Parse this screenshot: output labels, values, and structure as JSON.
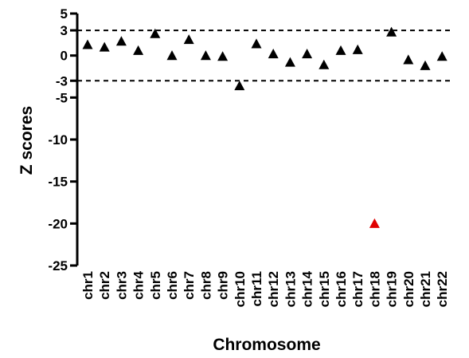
{
  "chart_data": {
    "type": "scatter",
    "xlabel": "Chromosome",
    "ylabel": "Z scores",
    "categories": [
      "chr1",
      "chr2",
      "chr3",
      "chr4",
      "chr5",
      "chr6",
      "chr7",
      "chr8",
      "chr9",
      "chr10",
      "chr11",
      "chr12",
      "chr13",
      "chr14",
      "chr15",
      "chr16",
      "chr17",
      "chr18",
      "chr19",
      "chr20",
      "chr21",
      "chr22"
    ],
    "values": [
      1.3,
      1.0,
      1.7,
      0.6,
      2.6,
      0.0,
      1.9,
      0.0,
      -0.1,
      -3.6,
      1.4,
      0.2,
      -0.8,
      0.2,
      -1.1,
      0.6,
      0.7,
      -20.0,
      2.8,
      -0.5,
      -1.2,
      -0.1
    ],
    "point_colors": [
      "#000000",
      "#000000",
      "#000000",
      "#000000",
      "#000000",
      "#000000",
      "#000000",
      "#000000",
      "#000000",
      "#000000",
      "#000000",
      "#000000",
      "#000000",
      "#000000",
      "#000000",
      "#000000",
      "#000000",
      "#e00000",
      "#000000",
      "#000000",
      "#000000",
      "#000000"
    ],
    "marker": "triangle",
    "yticks": [
      5,
      3,
      0,
      -3,
      -5,
      -10,
      -15,
      -20,
      -25
    ],
    "ytick_labels": [
      "5",
      "3",
      "0",
      "-3",
      "-5",
      "-10",
      "-15",
      "-20",
      "-25"
    ],
    "ylim": [
      -25,
      5
    ],
    "reference_lines": [
      3,
      -3
    ],
    "grid": false,
    "legend": "none"
  }
}
